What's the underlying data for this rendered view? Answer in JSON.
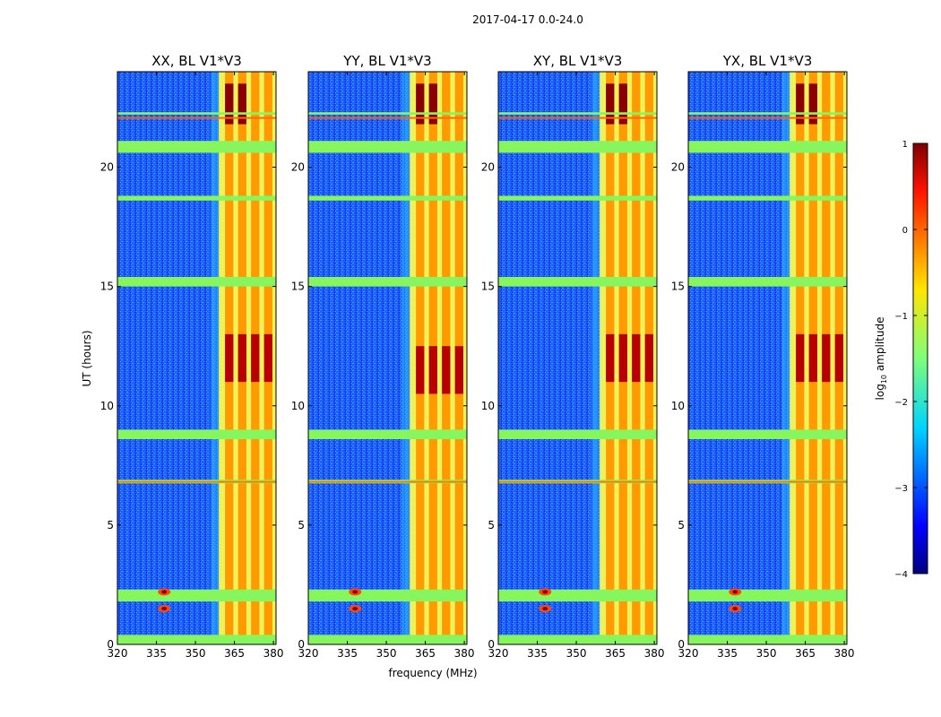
{
  "chart_data": {
    "type": "heatmap",
    "title": "2017-04-17 0.0-24.0",
    "xlabel": "frequency (MHz)",
    "ylabel": "UT (hours)",
    "xlim": [
      320,
      381
    ],
    "ylim": [
      0,
      24
    ],
    "xticks": [
      "320",
      "335",
      "350",
      "365",
      "380"
    ],
    "yticks": [
      "0",
      "5",
      "10",
      "15",
      "20"
    ],
    "panels": [
      {
        "title": "XX, BL V1*V3",
        "max_band_hour": 12.0
      },
      {
        "title": "YY, BL V1*V3",
        "max_band_hour": 11.5
      },
      {
        "title": "XY, BL V1*V3",
        "max_band_hour": 12.0
      },
      {
        "title": "YX, BL V1*V3",
        "max_band_hour": 12.0
      }
    ],
    "colorbar": {
      "label_main": "log",
      "label_sub": "10",
      "label_tail": " amplitude",
      "min": -4,
      "max": 1,
      "ticks": [
        "1",
        "0",
        "−1",
        "−2",
        "−3",
        "−4"
      ],
      "colormap": "jet"
    },
    "features": {
      "band_start_mhz": 359,
      "band_channels_mhz": [
        363,
        368,
        373,
        378
      ],
      "flagged_hours": [
        [
          0.0,
          0.4
        ],
        [
          1.8,
          2.3
        ],
        [
          8.6,
          9.0
        ],
        [
          15.0,
          15.4
        ],
        [
          20.6,
          21.1
        ],
        [
          18.6,
          18.8
        ],
        [
          22.2,
          22.3
        ],
        [
          6.75,
          6.9
        ]
      ],
      "point_source_mhz": 338,
      "point_source_hours": [
        1.5,
        2.2
      ]
    }
  }
}
